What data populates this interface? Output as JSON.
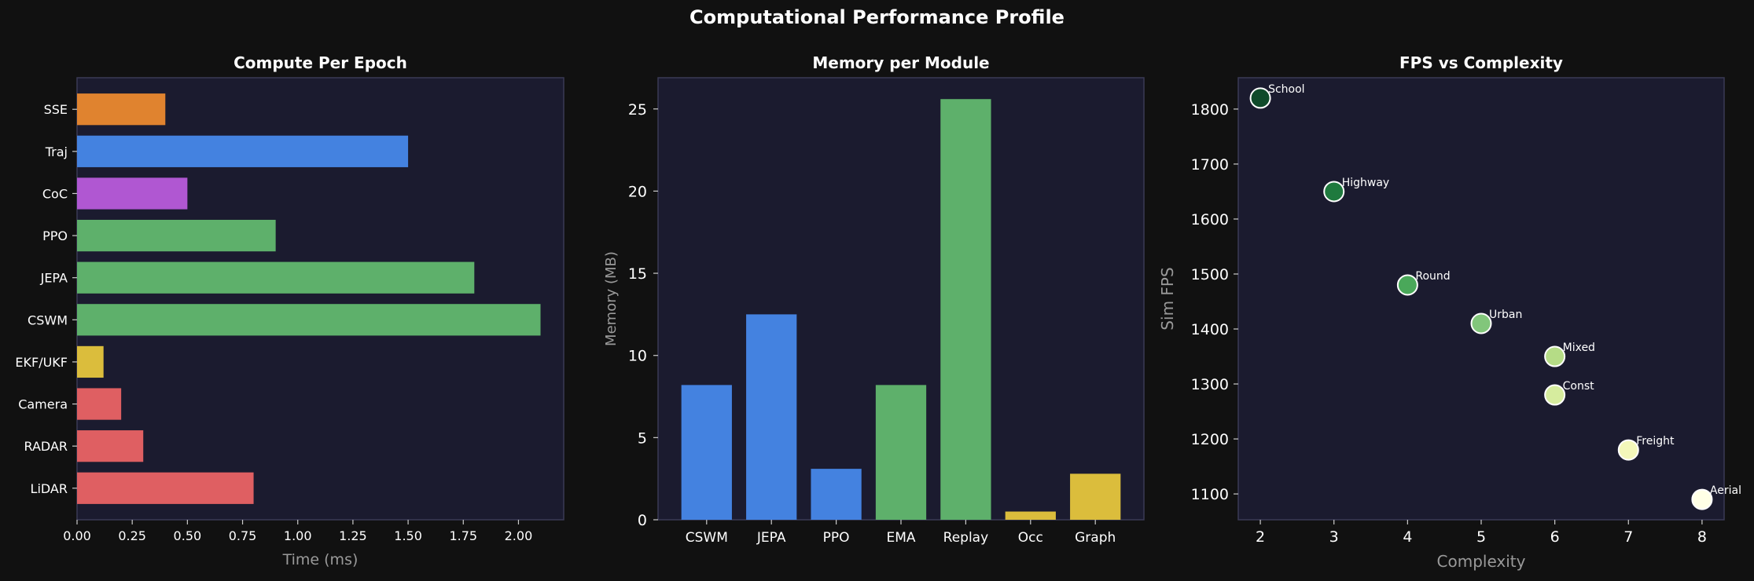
{
  "figure": {
    "title": "Computational Performance Profile"
  },
  "colors": {
    "background": "#111111",
    "panel": "#1b1b2f",
    "text": "#ffffff",
    "muted": "#9a9a9a",
    "orange": "#e0832f",
    "blue": "#4482e0",
    "purple": "#b057d2",
    "green": "#5eb06b",
    "yellow": "#dbbd3c",
    "red": "#df5f62"
  },
  "chart_data": [
    {
      "type": "bar",
      "orientation": "horizontal",
      "title": "Compute Per Epoch",
      "xlabel": "Time (ms)",
      "ylabel": "",
      "categories": [
        "LiDAR",
        "RADAR",
        "Camera",
        "EKF/UKF",
        "CSWM",
        "JEPA",
        "PPO",
        "CoC",
        "Traj",
        "SSE"
      ],
      "values": [
        0.8,
        0.3,
        0.2,
        0.12,
        2.1,
        1.8,
        0.9,
        0.5,
        1.5,
        0.4
      ],
      "bar_colors": [
        "red",
        "red",
        "red",
        "yellow",
        "green",
        "green",
        "green",
        "purple",
        "blue",
        "orange"
      ],
      "xlim": [
        0,
        2.205
      ],
      "xticks": [
        0,
        0.25,
        0.5,
        0.75,
        1.0,
        1.25,
        1.5,
        1.75,
        2.0
      ],
      "xtick_labels": [
        "0.00",
        "0.25",
        "0.50",
        "0.75",
        "1.00",
        "1.25",
        "1.50",
        "1.75",
        "2.00"
      ]
    },
    {
      "type": "bar",
      "title": "Memory per Module",
      "xlabel": "",
      "ylabel": "Memory (MB)",
      "categories": [
        "CSWM",
        "JEPA",
        "PPO",
        "EMA",
        "Replay",
        "Occ",
        "Graph"
      ],
      "values": [
        8.2,
        12.5,
        3.1,
        8.2,
        25.6,
        0.5,
        2.8
      ],
      "bar_colors": [
        "blue",
        "blue",
        "blue",
        "green",
        "green",
        "yellow",
        "yellow"
      ],
      "ylim": [
        0,
        26.9
      ],
      "yticks": [
        0,
        5,
        10,
        15,
        20,
        25
      ],
      "ytick_labels": [
        "0",
        "5",
        "10",
        "15",
        "20",
        "25"
      ]
    },
    {
      "type": "scatter",
      "title": "FPS vs Complexity",
      "xlabel": "Complexity",
      "ylabel": "Sim FPS",
      "points": [
        {
          "label": "School",
          "x": 2,
          "y": 1820
        },
        {
          "label": "Highway",
          "x": 3,
          "y": 1650
        },
        {
          "label": "Round",
          "x": 4,
          "y": 1480
        },
        {
          "label": "Urban",
          "x": 5,
          "y": 1410
        },
        {
          "label": "Mixed",
          "x": 6,
          "y": 1350
        },
        {
          "label": "Const",
          "x": 6,
          "y": 1280
        },
        {
          "label": "Freight",
          "x": 7,
          "y": 1180
        },
        {
          "label": "Aerial",
          "x": 8,
          "y": 1090
        }
      ],
      "point_colors": [
        "#0f4a2a",
        "#1f7a3e",
        "#4aa85a",
        "#82c67b",
        "#b5dc86",
        "#d6ec9e",
        "#f3f7ba",
        "#ffffe6"
      ],
      "xlim": [
        1.7,
        8.3
      ],
      "ylim": [
        1053,
        1857
      ],
      "xticks": [
        2,
        3,
        4,
        5,
        6,
        7,
        8
      ],
      "yticks": [
        1100,
        1200,
        1300,
        1400,
        1500,
        1600,
        1700,
        1800
      ],
      "grid": false
    }
  ]
}
